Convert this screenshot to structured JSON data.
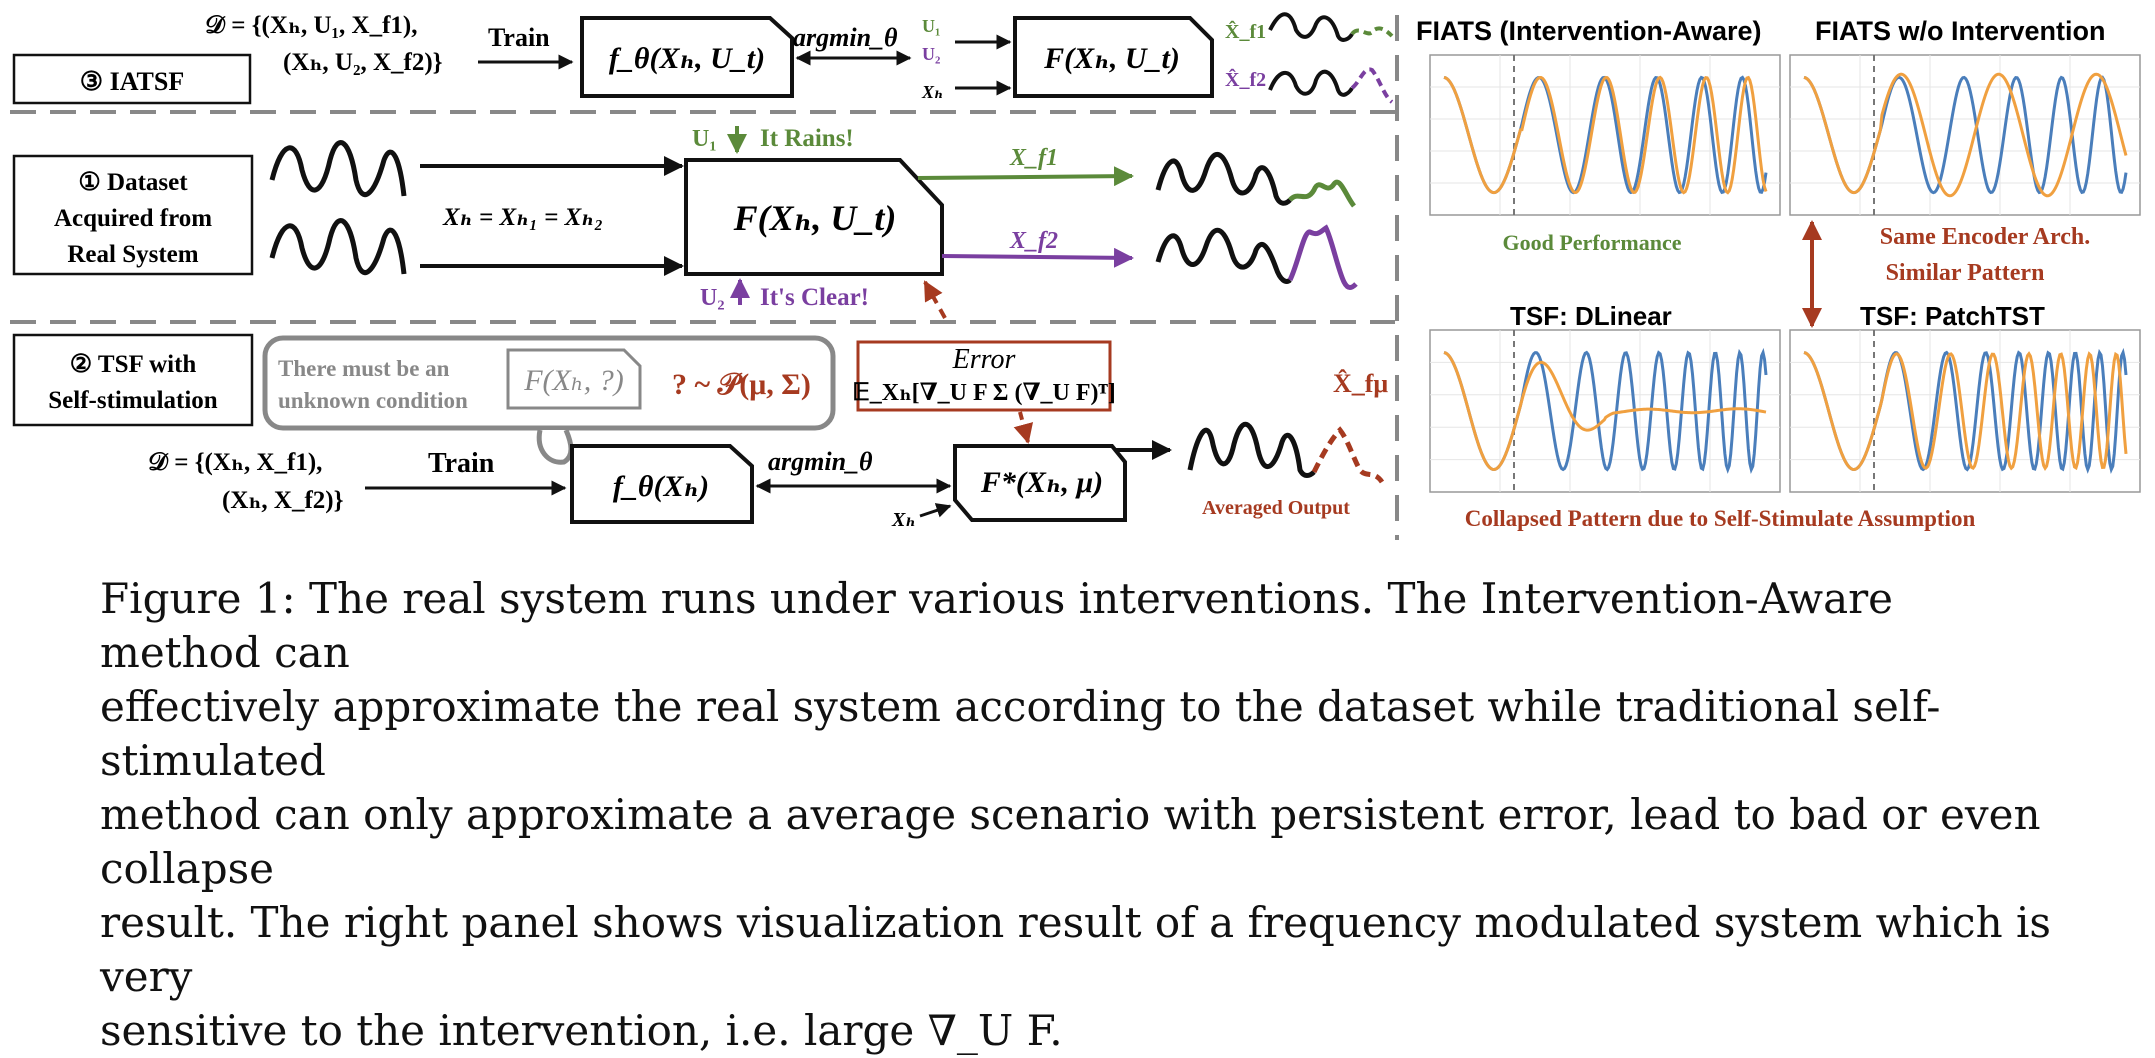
{
  "iatsf": {
    "label": "③ IATSF",
    "dataset_line1": "𝒟 = {(Xₕ, U₁, X_f1),",
    "dataset_line2": "(Xₕ, U₂, X_f2)}",
    "train": "Train",
    "model": "f_θ(Xₕ, U_t)",
    "argmin": "argmin_θ",
    "u1": "U₁",
    "u2": "U₂",
    "xh": "Xₕ",
    "system": "F(Xₕ, U_t)",
    "xf1_hat": "X̂_f1",
    "xf2_hat": "X̂_f2"
  },
  "dataset": {
    "label_line1": "① Dataset",
    "label_line2": "Acquired from",
    "label_line3": "Real System",
    "equality": "Xₕ = Xₕ₁ = Xₕ₂",
    "u1_text": "U₁",
    "rains": "It Rains!",
    "u2_text": "U₂",
    "clear": "It's Clear!",
    "system": "F(Xₕ, U_t)",
    "xf1": "X_f1",
    "xf2": "X_f2"
  },
  "tsf": {
    "label_line1": "② TSF with",
    "label_line2": "Self-stimulation",
    "bubble_line1": "There must be an",
    "bubble_line2": "unknown condition",
    "unknown_fn": "F(Xₕ, ?)",
    "dist": "? ~ 𝒫(μ, Σ)",
    "error_title": "Error",
    "error_expr": "𝔼_Xₕ[∇_U F Σ (∇_U F)ᵀ]",
    "dataset_line1": "𝒟 = {(Xₕ, X_f1),",
    "dataset_line2": "(Xₕ, X_f2)}",
    "train": "Train",
    "model": "f_θ(Xₕ)",
    "argmin": "argmin_θ",
    "approx": "F*(Xₕ, μ)",
    "xh": "Xₕ",
    "output_hat": "X̂_fμ",
    "averaged": "Averaged Output"
  },
  "panels": {
    "title_tl": "FIATS (Intervention-Aware)",
    "title_tr": "FIATS w/o Intervention",
    "good": "Good Performance",
    "same1": "Same Encoder Arch.",
    "same2": "Similar Pattern",
    "title_bl": "TSF: DLinear",
    "title_br": "TSF: PatchTST",
    "collapsed": "Collapsed Pattern due to Self-Stimulate Assumption"
  },
  "colors": {
    "green": "#5b8a3a",
    "purple": "#7a3fa0",
    "red": "#a63a20",
    "blue": "#4a7ebb",
    "orange": "#f0a040"
  },
  "caption": {
    "line1": "Figure 1: The real system runs under various interventions. The Intervention-Aware method can",
    "line2": "effectively approximate the real system according to the dataset while traditional self-stimulated",
    "line3": "method can only approximate a average scenario with persistent error, lead to bad or even collapse",
    "line4": "result. The right panel shows visualization result of a frequency modulated system which is very",
    "line5": "sensitive to the intervention, i.e. large ∇_U F."
  }
}
